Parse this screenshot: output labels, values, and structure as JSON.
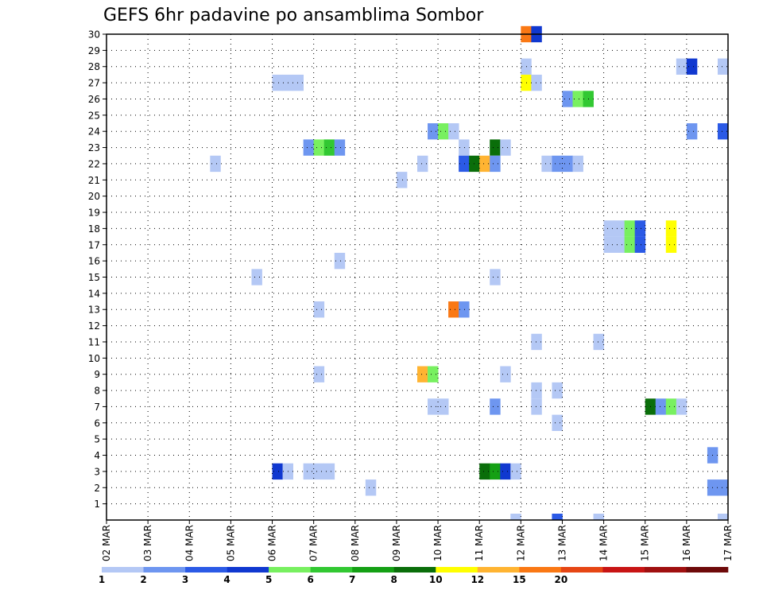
{
  "chart_data": {
    "type": "heatmap",
    "title": "GEFS 6hr padavine po ansamblima Sombor",
    "xlabel": "",
    "ylabel": "",
    "x_tick_labels": [
      "02 MAR",
      "03 MAR",
      "04 MAR",
      "05 MAR",
      "06 MAR",
      "07 MAR",
      "08 MAR",
      "09 MAR",
      "10 MAR",
      "11 MAR",
      "12 MAR",
      "13 MAR",
      "14 MAR",
      "15 MAR",
      "16 MAR",
      "17 MAR"
    ],
    "x_range_days": [
      0,
      15
    ],
    "y_tick_labels": [
      "1",
      "2",
      "3",
      "4",
      "5",
      "6",
      "7",
      "8",
      "9",
      "10",
      "11",
      "12",
      "13",
      "14",
      "15",
      "16",
      "17",
      "18",
      "19",
      "20",
      "21",
      "22",
      "23",
      "24",
      "25",
      "26",
      "27",
      "28",
      "29",
      "30"
    ],
    "y_range": [
      0,
      30
    ],
    "grid": true,
    "colorbar": {
      "tick_labels": [
        "1",
        "2",
        "3",
        "4",
        "5",
        "6",
        "7",
        "8",
        "10",
        "12",
        "15",
        "20"
      ],
      "colors": [
        "#b4c8f5",
        "#6e96f0",
        "#2b5ae6",
        "#1038d0",
        "#78f060",
        "#32c832",
        "#14a014",
        "#0a6e0a",
        "#ffff00",
        "#ffb432",
        "#fa7814",
        "#e64614",
        "#c81414",
        "#a01010",
        "#6e0a0a"
      ]
    },
    "cells": [
      {
        "member": 30,
        "day": 10.0,
        "level": 11
      },
      {
        "member": 30,
        "day": 10.25,
        "level": 4
      },
      {
        "member": 28,
        "day": 10.0,
        "level": 1
      },
      {
        "member": 28,
        "day": 13.75,
        "level": 1
      },
      {
        "member": 28,
        "day": 14.0,
        "level": 4
      },
      {
        "member": 28,
        "day": 14.75,
        "level": 1
      },
      {
        "member": 27,
        "day": 4.0,
        "level": 1
      },
      {
        "member": 27,
        "day": 4.25,
        "level": 1
      },
      {
        "member": 27,
        "day": 4.5,
        "level": 1
      },
      {
        "member": 27,
        "day": 10.0,
        "level": 9
      },
      {
        "member": 27,
        "day": 10.25,
        "level": 1
      },
      {
        "member": 26,
        "day": 11.0,
        "level": 2
      },
      {
        "member": 26,
        "day": 11.25,
        "level": 5
      },
      {
        "member": 26,
        "day": 11.5,
        "level": 6
      },
      {
        "member": 24,
        "day": 7.75,
        "level": 2
      },
      {
        "member": 24,
        "day": 8.0,
        "level": 5
      },
      {
        "member": 24,
        "day": 8.25,
        "level": 1
      },
      {
        "member": 24,
        "day": 14.0,
        "level": 2
      },
      {
        "member": 24,
        "day": 14.75,
        "level": 3
      },
      {
        "member": 23,
        "day": 4.75,
        "level": 2
      },
      {
        "member": 23,
        "day": 5.0,
        "level": 5
      },
      {
        "member": 23,
        "day": 5.25,
        "level": 6
      },
      {
        "member": 23,
        "day": 5.5,
        "level": 2
      },
      {
        "member": 23,
        "day": 8.5,
        "level": 1
      },
      {
        "member": 23,
        "day": 9.25,
        "level": 8
      },
      {
        "member": 23,
        "day": 9.5,
        "level": 1
      },
      {
        "member": 22,
        "day": 2.5,
        "level": 1
      },
      {
        "member": 22,
        "day": 7.5,
        "level": 1
      },
      {
        "member": 22,
        "day": 8.5,
        "level": 3
      },
      {
        "member": 22,
        "day": 8.75,
        "level": 8
      },
      {
        "member": 22,
        "day": 9.0,
        "level": 10
      },
      {
        "member": 22,
        "day": 9.25,
        "level": 2
      },
      {
        "member": 22,
        "day": 10.5,
        "level": 1
      },
      {
        "member": 22,
        "day": 10.75,
        "level": 2
      },
      {
        "member": 22,
        "day": 11.0,
        "level": 2
      },
      {
        "member": 22,
        "day": 11.25,
        "level": 1
      },
      {
        "member": 21,
        "day": 7.0,
        "level": 1
      },
      {
        "member": 18,
        "day": 12.0,
        "level": 1
      },
      {
        "member": 18,
        "day": 12.25,
        "level": 1
      },
      {
        "member": 18,
        "day": 12.5,
        "level": 5
      },
      {
        "member": 18,
        "day": 12.75,
        "level": 3
      },
      {
        "member": 18,
        "day": 13.5,
        "level": 9
      },
      {
        "member": 17,
        "day": 12.0,
        "level": 1
      },
      {
        "member": 17,
        "day": 12.25,
        "level": 1
      },
      {
        "member": 17,
        "day": 12.5,
        "level": 5
      },
      {
        "member": 17,
        "day": 12.75,
        "level": 3
      },
      {
        "member": 17,
        "day": 13.5,
        "level": 9
      },
      {
        "member": 16,
        "day": 5.5,
        "level": 1
      },
      {
        "member": 15,
        "day": 3.5,
        "level": 1
      },
      {
        "member": 15,
        "day": 9.25,
        "level": 1
      },
      {
        "member": 13,
        "day": 5.0,
        "level": 1
      },
      {
        "member": 13,
        "day": 8.25,
        "level": 11
      },
      {
        "member": 13,
        "day": 8.5,
        "level": 2
      },
      {
        "member": 11,
        "day": 10.25,
        "level": 1
      },
      {
        "member": 11,
        "day": 11.75,
        "level": 1
      },
      {
        "member": 9,
        "day": 5.0,
        "level": 1
      },
      {
        "member": 9,
        "day": 7.5,
        "level": 10
      },
      {
        "member": 9,
        "day": 7.75,
        "level": 5
      },
      {
        "member": 9,
        "day": 9.5,
        "level": 1
      },
      {
        "member": 8,
        "day": 10.25,
        "level": 1
      },
      {
        "member": 8,
        "day": 10.75,
        "level": 1
      },
      {
        "member": 7,
        "day": 7.75,
        "level": 1
      },
      {
        "member": 7,
        "day": 8.0,
        "level": 1
      },
      {
        "member": 7,
        "day": 9.25,
        "level": 2
      },
      {
        "member": 7,
        "day": 10.25,
        "level": 1
      },
      {
        "member": 7,
        "day": 13.0,
        "level": 8
      },
      {
        "member": 7,
        "day": 13.25,
        "level": 2
      },
      {
        "member": 7,
        "day": 13.5,
        "level": 5
      },
      {
        "member": 7,
        "day": 13.75,
        "level": 1
      },
      {
        "member": 6,
        "day": 10.75,
        "level": 1
      },
      {
        "member": 4,
        "day": 14.5,
        "level": 2
      },
      {
        "member": 3,
        "day": 4.0,
        "level": 4
      },
      {
        "member": 3,
        "day": 4.25,
        "level": 1
      },
      {
        "member": 3,
        "day": 4.75,
        "level": 1
      },
      {
        "member": 3,
        "day": 5.0,
        "level": 1
      },
      {
        "member": 3,
        "day": 5.25,
        "level": 1
      },
      {
        "member": 3,
        "day": 9.0,
        "level": 8
      },
      {
        "member": 3,
        "day": 9.25,
        "level": 7
      },
      {
        "member": 3,
        "day": 9.5,
        "level": 4
      },
      {
        "member": 3,
        "day": 9.75,
        "level": 1
      },
      {
        "member": 2,
        "day": 6.25,
        "level": 1
      },
      {
        "member": 2,
        "day": 14.5,
        "level": 2
      },
      {
        "member": 2,
        "day": 14.75,
        "level": 2
      },
      {
        "member": 0,
        "day": 9.75,
        "level": 1
      },
      {
        "member": 0,
        "day": 10.75,
        "level": 3
      },
      {
        "member": 0,
        "day": 11.75,
        "level": 1
      },
      {
        "member": 0,
        "day": 14.75,
        "level": 1
      }
    ]
  }
}
